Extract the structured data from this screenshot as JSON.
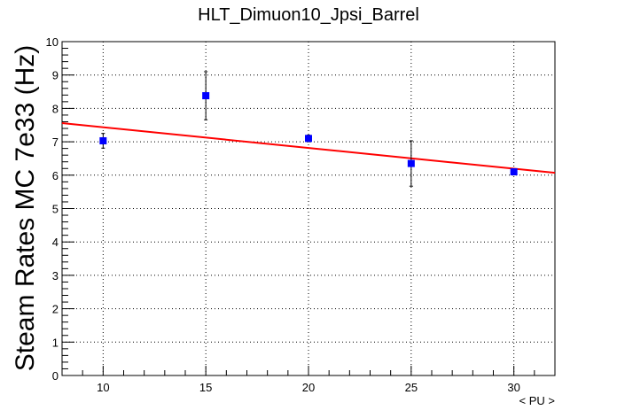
{
  "chart_data": {
    "type": "scatter",
    "title": "HLT_Dimuon10_Jpsi_Barrel",
    "xlabel": "< PU >",
    "ylabel": "Steam Rates MC 7e33 (Hz)",
    "xlim": [
      8,
      32
    ],
    "ylim": [
      0,
      10
    ],
    "x_ticks": [
      10,
      15,
      20,
      25,
      30
    ],
    "y_ticks": [
      0,
      1,
      2,
      3,
      4,
      5,
      6,
      7,
      8,
      9,
      10
    ],
    "grid": true,
    "series": [
      {
        "color": "#0000ff",
        "marker": "square",
        "points": [
          {
            "x": 10,
            "y": 7.03,
            "err": 0.22
          },
          {
            "x": 15,
            "y": 8.38,
            "err": 0.72
          },
          {
            "x": 20,
            "y": 7.1,
            "err": 0.1
          },
          {
            "x": 25,
            "y": 6.35,
            "err": 0.68
          },
          {
            "x": 30,
            "y": 6.1,
            "err": 0.05
          }
        ]
      }
    ],
    "fit": {
      "type": "linear",
      "color": "#ff0000",
      "x": [
        8,
        32
      ],
      "y": [
        7.56,
        6.07
      ]
    }
  }
}
